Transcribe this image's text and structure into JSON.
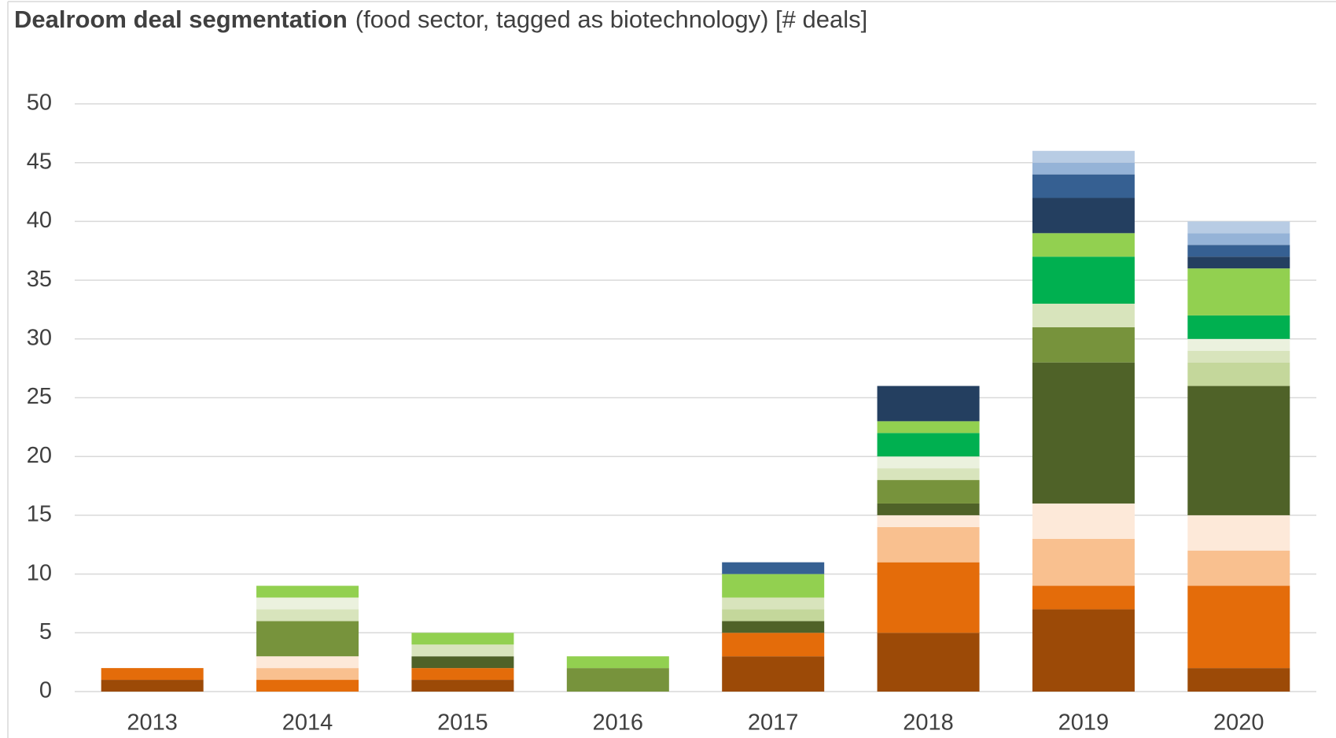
{
  "chart_data": {
    "type": "stacked_bar",
    "title": "Dealroom deal segmentation",
    "subtitle": "(food sector, tagged as biotechnology) [# deals]",
    "categories": [
      "2013",
      "2014",
      "2015",
      "2016",
      "2017",
      "2018",
      "2019",
      "2020"
    ],
    "series": [
      {
        "color": "#9c4a07",
        "values": [
          1,
          0,
          1,
          0,
          3,
          5,
          7,
          2
        ]
      },
      {
        "color": "#e46c0a",
        "values": [
          1,
          1,
          1,
          0,
          2,
          6,
          2,
          7
        ]
      },
      {
        "color": "#f9c08f",
        "values": [
          0,
          1,
          0,
          0,
          0,
          3,
          4,
          3
        ]
      },
      {
        "color": "#fde9d9",
        "values": [
          0,
          1,
          0,
          0,
          0,
          1,
          3,
          3
        ]
      },
      {
        "color": "#4f6228",
        "values": [
          0,
          0,
          1,
          0,
          1,
          1,
          12,
          11
        ]
      },
      {
        "color": "#77933c",
        "values": [
          0,
          3,
          0,
          2,
          0,
          2,
          3,
          0
        ]
      },
      {
        "color": "#c4d79b",
        "values": [
          0,
          0,
          0,
          0,
          1,
          0,
          0,
          2
        ]
      },
      {
        "color": "#d8e4bc",
        "values": [
          0,
          1,
          1,
          0,
          1,
          1,
          2,
          1
        ]
      },
      {
        "color": "#ebf1de",
        "values": [
          0,
          1,
          0,
          0,
          0,
          1,
          0,
          1
        ]
      },
      {
        "color": "#00b050",
        "values": [
          0,
          0,
          0,
          0,
          0,
          2,
          4,
          2
        ]
      },
      {
        "color": "#92d050",
        "values": [
          0,
          1,
          1,
          1,
          2,
          1,
          2,
          4
        ]
      },
      {
        "color": "#243f60",
        "values": [
          0,
          0,
          0,
          0,
          0,
          3,
          3,
          1
        ]
      },
      {
        "color": "#366092",
        "values": [
          0,
          0,
          0,
          0,
          1,
          0,
          2,
          1
        ]
      },
      {
        "color": "#95b3d7",
        "values": [
          0,
          0,
          0,
          0,
          0,
          0,
          1,
          1
        ]
      },
      {
        "color": "#b8cce4",
        "values": [
          0,
          0,
          0,
          0,
          0,
          0,
          1,
          1
        ]
      }
    ],
    "ylim": [
      0,
      50
    ],
    "yticks": [
      0,
      5,
      10,
      15,
      20,
      25,
      30,
      35,
      40,
      45,
      50
    ],
    "grid": true
  }
}
